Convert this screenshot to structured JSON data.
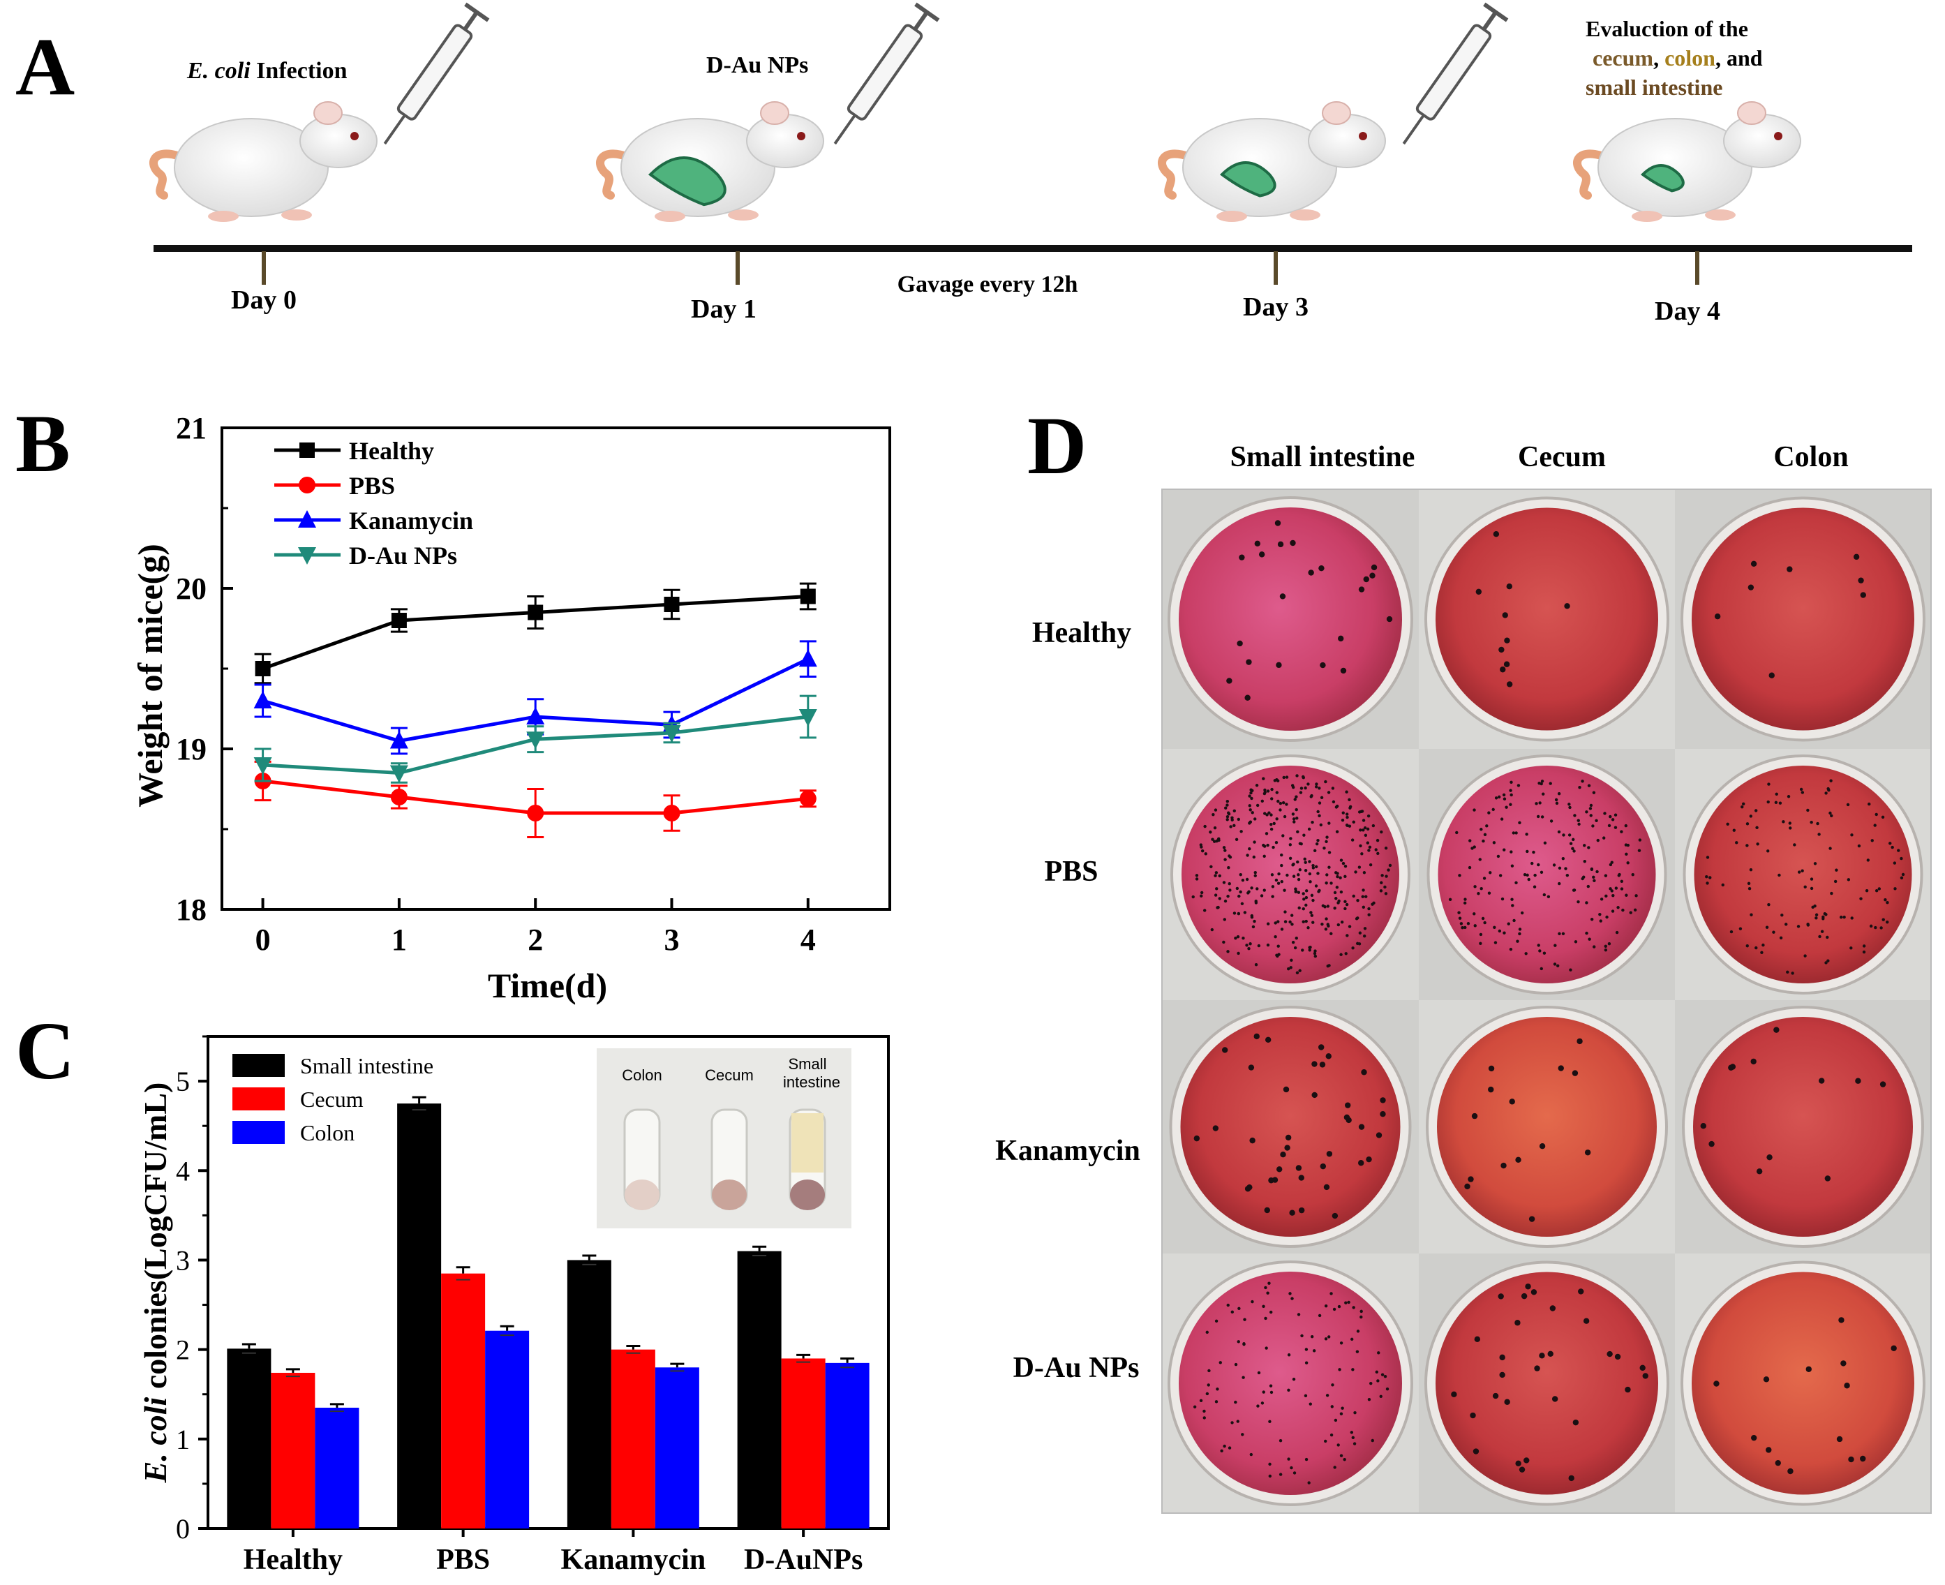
{
  "panels": {
    "a": "A",
    "b": "B",
    "c": "C",
    "d": "D"
  },
  "timeline": {
    "steps": [
      {
        "title_italic": "E. coli",
        "title_rest": " Infection",
        "day": "Day 0"
      },
      {
        "title_italic": "",
        "title_rest": "D-Au NPs",
        "day": "Day 1"
      },
      {
        "title_italic": "",
        "title_rest": "",
        "day": "Day 3"
      },
      {
        "title_italic": "",
        "title_rest": "",
        "day": "Day 4"
      }
    ],
    "gavage_note": "Gavage every 12h",
    "evaluation": {
      "line1": "Evaluction of the",
      "word_cecum": "cecum",
      "sep1": ", ",
      "word_colon": "colon",
      "sep2": ", and",
      "line3": "small intestine"
    }
  },
  "colors": {
    "healthy": "#000000",
    "pbs": "#ff0000",
    "kanamycin": "#0000ff",
    "dau": "#1f8a7a",
    "small_intestine": "#000000",
    "cecum": "#ff0000",
    "colon": "#0000ff",
    "agar_red": "#c8454a",
    "agar_pink": "#cf3c6e"
  },
  "chart_data": [
    {
      "id": "B",
      "type": "line",
      "title": "",
      "xlabel": "Time(d)",
      "ylabel": "Weight of mice(g)",
      "x": [
        0,
        1,
        2,
        3,
        4
      ],
      "xlim": [
        -0.3,
        4.6
      ],
      "ylim": [
        18,
        21
      ],
      "xticks": [
        "0",
        "1",
        "2",
        "3",
        "4"
      ],
      "yticks": [
        "18",
        "19",
        "20",
        "21"
      ],
      "legend_position": "top-left",
      "series": [
        {
          "name": "Healthy",
          "key": "healthy",
          "marker": "square",
          "values": [
            19.5,
            19.8,
            19.85,
            19.9,
            19.95
          ],
          "errors": [
            0.09,
            0.07,
            0.1,
            0.09,
            0.08
          ]
        },
        {
          "name": "PBS",
          "key": "pbs",
          "marker": "circle",
          "values": [
            18.8,
            18.7,
            18.6,
            18.6,
            18.69
          ],
          "errors": [
            0.12,
            0.07,
            0.15,
            0.11,
            0.05
          ]
        },
        {
          "name": "Kanamycin",
          "key": "kanamycin",
          "marker": "triangle-up",
          "values": [
            19.3,
            19.05,
            19.2,
            19.15,
            19.56
          ],
          "errors": [
            0.1,
            0.08,
            0.11,
            0.08,
            0.11
          ]
        },
        {
          "name": "D-Au NPs",
          "key": "dau",
          "marker": "triangle-down",
          "values": [
            18.9,
            18.85,
            19.06,
            19.1,
            19.2
          ],
          "errors": [
            0.1,
            0.06,
            0.08,
            0.06,
            0.13
          ]
        }
      ]
    },
    {
      "id": "C",
      "type": "bar",
      "title": "",
      "xlabel": "",
      "ylabel_italic": "E. coli",
      "ylabel_rest": " colonies(LogCFU/mL)",
      "categories": [
        "Healthy",
        "PBS",
        "Kanamycin",
        "D-AuNPs"
      ],
      "ylim": [
        0,
        5.5
      ],
      "yticks": [
        "0",
        "1",
        "2",
        "3",
        "4",
        "5"
      ],
      "legend_position": "top-left",
      "series": [
        {
          "name": "Small intestine",
          "key": "small_intestine",
          "values": [
            2.01,
            4.75,
            3.0,
            3.1
          ],
          "errors": [
            0.05,
            0.07,
            0.05,
            0.05
          ]
        },
        {
          "name": "Cecum",
          "key": "cecum",
          "values": [
            1.74,
            2.85,
            2.0,
            1.9
          ],
          "errors": [
            0.04,
            0.07,
            0.04,
            0.04
          ]
        },
        {
          "name": "Colon",
          "key": "colon",
          "values": [
            1.35,
            2.21,
            1.8,
            1.85
          ],
          "errors": [
            0.04,
            0.05,
            0.04,
            0.05
          ]
        }
      ]
    }
  ],
  "inset": {
    "labels": [
      "Colon",
      "Cecum",
      "Small\nintestine"
    ],
    "line1": "Small",
    "line2": "intestine"
  },
  "panel_d": {
    "columns": [
      "Small intestine",
      "Cecum",
      "Colon"
    ],
    "rows": [
      "Healthy",
      "PBS",
      "Kanamycin",
      "D-Au NPs"
    ]
  }
}
